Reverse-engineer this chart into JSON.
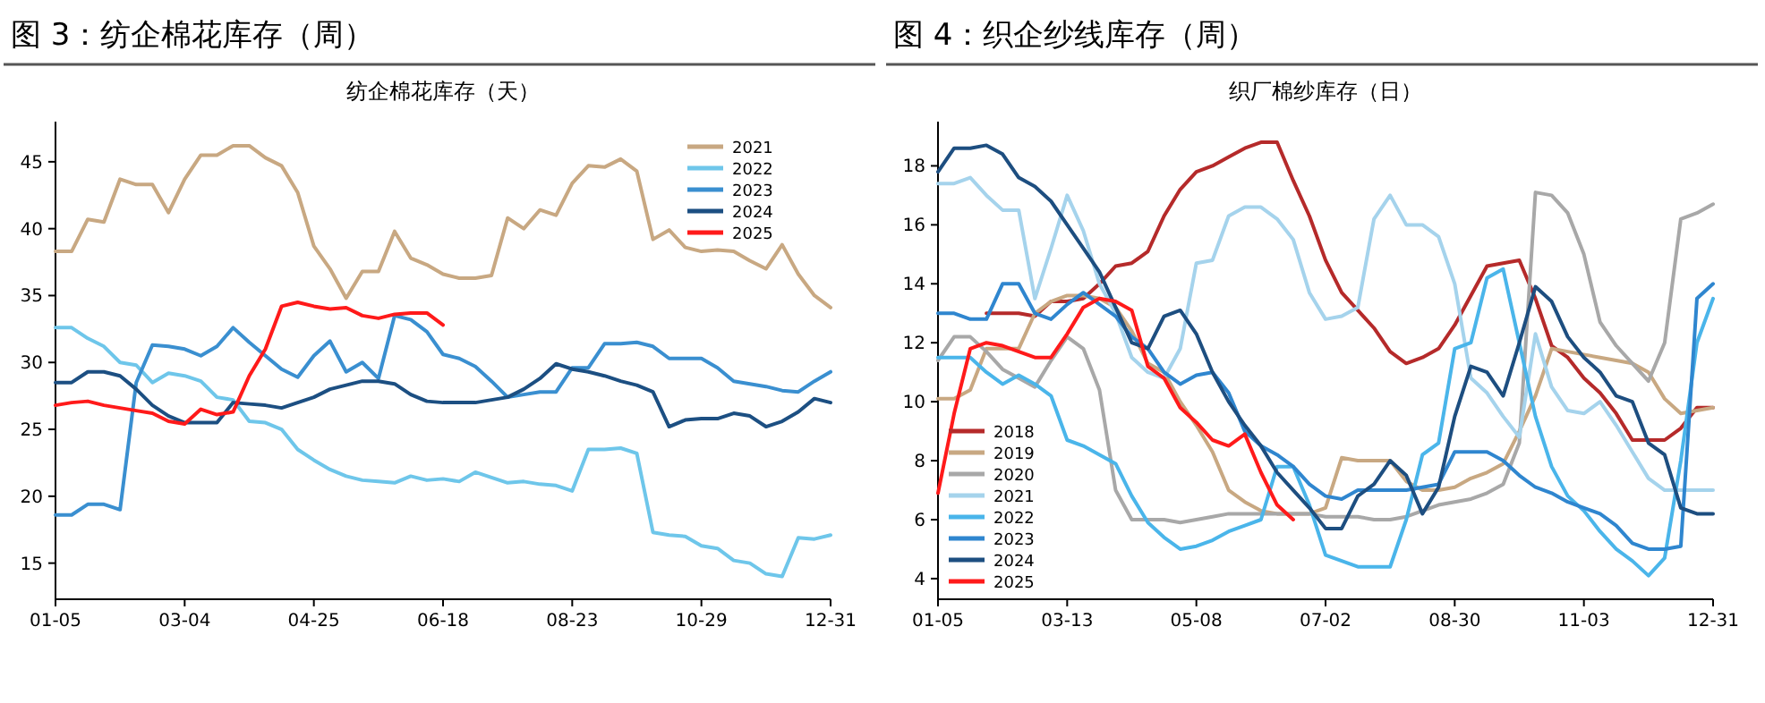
{
  "chart_data": [
    {
      "type": "line",
      "title": "图 3：纺企棉花库存（周）",
      "subtitle": "纺企棉花库存（天）",
      "categories": [
        "01-05",
        null,
        null,
        null,
        null,
        null,
        null,
        null,
        "03-04",
        null,
        null,
        null,
        null,
        null,
        null,
        null,
        "04-25",
        null,
        null,
        null,
        null,
        null,
        null,
        null,
        "06-18",
        null,
        null,
        null,
        null,
        null,
        null,
        null,
        "08-23",
        null,
        null,
        null,
        null,
        null,
        null,
        null,
        "10-29",
        null,
        null,
        null,
        null,
        null,
        null,
        null,
        "12-31"
      ],
      "ylim": [
        12.3,
        48
      ],
      "yticks": [
        15,
        20,
        25,
        30,
        35,
        40,
        45
      ],
      "legend": "top right",
      "series": [
        {
          "name": "2021",
          "color": "#c8a882",
          "values": [
            38.3,
            38.3,
            40.7,
            40.5,
            43.7,
            43.3,
            43.3,
            41.2,
            43.7,
            45.5,
            45.5,
            46.2,
            46.2,
            45.3,
            44.7,
            42.7,
            38.7,
            37.0,
            34.8,
            36.8,
            36.8,
            39.8,
            37.8,
            37.3,
            36.6,
            36.3,
            36.3,
            36.5,
            40.8,
            40.0,
            41.4,
            41.0,
            43.4,
            44.7,
            44.6,
            45.2,
            44.3,
            39.2,
            39.9,
            38.6,
            38.3,
            38.4,
            38.3,
            37.6,
            37.0,
            38.8,
            36.6,
            35.0,
            34.1
          ]
        },
        {
          "name": "2022",
          "color": "#6ec6ea",
          "values": [
            32.6,
            32.6,
            31.8,
            31.2,
            30.0,
            29.8,
            28.5,
            29.2,
            29.0,
            28.6,
            27.4,
            27.2,
            25.6,
            25.5,
            25.0,
            23.5,
            22.7,
            22.0,
            21.5,
            21.2,
            21.1,
            21.0,
            21.5,
            21.2,
            21.3,
            21.1,
            21.8,
            21.4,
            21.0,
            21.1,
            20.9,
            20.8,
            20.4,
            23.5,
            23.5,
            23.6,
            23.2,
            17.3,
            17.1,
            17.0,
            16.3,
            16.1,
            15.2,
            15.0,
            14.2,
            14.0,
            16.9,
            16.8,
            17.1
          ]
        },
        {
          "name": "2023",
          "color": "#3a8fd0",
          "values": [
            18.6,
            18.6,
            19.4,
            19.4,
            19.0,
            28.5,
            31.3,
            31.2,
            31.0,
            30.5,
            31.2,
            32.6,
            31.5,
            30.5,
            29.5,
            28.9,
            30.5,
            31.6,
            29.3,
            30.0,
            28.8,
            33.5,
            33.2,
            32.3,
            30.6,
            30.3,
            29.7,
            28.6,
            27.4,
            27.6,
            27.8,
            27.8,
            29.6,
            29.6,
            31.4,
            31.4,
            31.5,
            31.2,
            30.3,
            30.3,
            30.3,
            29.6,
            28.6,
            28.4,
            28.2,
            27.9,
            27.8,
            28.6,
            29.3
          ]
        },
        {
          "name": "2024",
          "color": "#1c4f82",
          "values": [
            28.5,
            28.5,
            29.3,
            29.3,
            29.0,
            28.0,
            26.8,
            26.0,
            25.5,
            25.5,
            25.5,
            27.0,
            26.9,
            26.8,
            26.6,
            27.0,
            27.4,
            28.0,
            28.3,
            28.6,
            28.6,
            28.4,
            27.6,
            27.1,
            27.0,
            27.0,
            27.0,
            27.2,
            27.4,
            28.0,
            28.8,
            29.9,
            29.5,
            29.3,
            29.0,
            28.6,
            28.3,
            27.8,
            25.2,
            25.7,
            25.8,
            25.8,
            26.2,
            26.0,
            25.2,
            25.6,
            26.3,
            27.3,
            27.0
          ]
        },
        {
          "name": "2025",
          "color": "#ff1a1a",
          "values": [
            26.8,
            27.0,
            27.1,
            26.8,
            26.6,
            26.4,
            26.2,
            25.6,
            25.4,
            26.5,
            26.1,
            26.3,
            29.0,
            31.0,
            34.2,
            34.5,
            34.2,
            34.0,
            34.1,
            33.5,
            33.3,
            33.6,
            33.7,
            33.7,
            32.8,
            null,
            null,
            null,
            null,
            null,
            null,
            null,
            null,
            null,
            null,
            null,
            null,
            null,
            null,
            null,
            null,
            null,
            null,
            null,
            null,
            null,
            null,
            null,
            null
          ]
        }
      ]
    },
    {
      "type": "line",
      "title": "图 4：织企纱线库存（周）",
      "subtitle": "织厂棉纱库存（日）",
      "categories": [
        "01-05",
        null,
        null,
        null,
        null,
        null,
        null,
        null,
        "03-13",
        null,
        null,
        null,
        null,
        null,
        null,
        null,
        "05-08",
        null,
        null,
        null,
        null,
        null,
        null,
        null,
        "07-02",
        null,
        null,
        null,
        null,
        null,
        null,
        null,
        "08-30",
        null,
        null,
        null,
        null,
        null,
        null,
        null,
        "11-03",
        null,
        null,
        null,
        null,
        null,
        null,
        null,
        "12-31"
      ],
      "ylim": [
        3.3,
        19.5
      ],
      "yticks": [
        4,
        6,
        8,
        10,
        12,
        14,
        16,
        18
      ],
      "legend": "bottom left",
      "series": [
        {
          "name": "2018",
          "color": "#b52a2a",
          "values": [
            null,
            null,
            null,
            13.0,
            13.0,
            13.0,
            12.9,
            13.4,
            13.4,
            13.5,
            14.0,
            14.6,
            14.7,
            15.1,
            16.3,
            17.2,
            17.8,
            18.0,
            18.3,
            18.6,
            18.8,
            18.8,
            17.5,
            16.3,
            14.8,
            13.7,
            13.1,
            12.5,
            11.7,
            11.3,
            11.5,
            11.8,
            12.6,
            13.6,
            14.6,
            14.7,
            14.8,
            13.5,
            11.9,
            11.5,
            10.8,
            10.3,
            9.6,
            8.7,
            8.7,
            8.7,
            9.1,
            9.8,
            9.8
          ]
        },
        {
          "name": "2019",
          "color": "#c8a882",
          "values": [
            10.1,
            10.1,
            10.4,
            11.8,
            11.8,
            11.8,
            13.0,
            13.4,
            13.6,
            13.6,
            13.5,
            13.2,
            12.4,
            11.3,
            11.0,
            10.0,
            9.2,
            8.3,
            7.0,
            6.6,
            6.3,
            6.2,
            6.2,
            6.2,
            6.4,
            8.1,
            8.0,
            8.0,
            8.0,
            7.3,
            7.0,
            7.0,
            7.1,
            7.4,
            7.6,
            7.9,
            9.0,
            10.2,
            11.8,
            11.7,
            11.6,
            11.5,
            11.4,
            11.3,
            11.0,
            10.1,
            9.6,
            9.7,
            9.8
          ]
        },
        {
          "name": "2020",
          "color": "#a8a8a8",
          "values": [
            11.4,
            12.2,
            12.2,
            11.7,
            11.1,
            10.8,
            10.5,
            11.4,
            12.2,
            11.8,
            10.4,
            7.0,
            6.0,
            6.0,
            6.0,
            5.9,
            6.0,
            6.1,
            6.2,
            6.2,
            6.2,
            6.2,
            6.2,
            6.2,
            6.1,
            6.1,
            6.1,
            6.0,
            6.0,
            6.1,
            6.3,
            6.5,
            6.6,
            6.7,
            6.9,
            7.2,
            8.6,
            17.1,
            17.0,
            16.4,
            15.0,
            12.7,
            11.9,
            11.3,
            10.7,
            12.0,
            16.2,
            16.4,
            16.7
          ]
        },
        {
          "name": "2021",
          "color": "#a5d3ec",
          "values": [
            17.4,
            17.4,
            17.6,
            17.0,
            16.5,
            16.5,
            13.5,
            15.2,
            17.0,
            15.8,
            14.0,
            13.0,
            11.5,
            11.0,
            10.8,
            11.8,
            14.7,
            14.8,
            16.3,
            16.6,
            16.6,
            16.2,
            15.5,
            13.7,
            12.8,
            12.9,
            13.2,
            16.2,
            17.0,
            16.0,
            16.0,
            15.6,
            14.0,
            10.8,
            10.3,
            9.5,
            8.8,
            12.3,
            10.5,
            9.7,
            9.6,
            10.0,
            9.2,
            8.3,
            7.4,
            7.0,
            7.0,
            7.0,
            7.0
          ]
        },
        {
          "name": "2022",
          "color": "#4ab5ea",
          "values": [
            11.5,
            11.5,
            11.5,
            11.0,
            10.6,
            10.9,
            10.6,
            10.2,
            8.7,
            8.5,
            8.2,
            7.9,
            6.8,
            5.9,
            5.4,
            5.0,
            5.1,
            5.3,
            5.6,
            5.8,
            6.0,
            7.8,
            7.8,
            6.5,
            4.8,
            4.6,
            4.4,
            4.4,
            4.4,
            6.0,
            8.2,
            8.6,
            11.8,
            12.0,
            14.2,
            14.5,
            12.0,
            9.5,
            7.8,
            6.8,
            6.3,
            5.6,
            5.0,
            4.6,
            4.1,
            4.7,
            8.0,
            12.0,
            13.5
          ]
        },
        {
          "name": "2023",
          "color": "#2f86cf",
          "values": [
            13.0,
            13.0,
            12.8,
            12.8,
            14.0,
            14.0,
            13.0,
            12.8,
            13.3,
            13.7,
            13.3,
            12.9,
            12.2,
            11.8,
            11.0,
            10.6,
            10.9,
            11.0,
            10.3,
            9.0,
            8.5,
            8.2,
            7.8,
            7.2,
            6.8,
            6.7,
            7.0,
            7.0,
            7.0,
            7.0,
            7.1,
            7.2,
            8.3,
            8.3,
            8.3,
            8.0,
            7.5,
            7.1,
            6.9,
            6.6,
            6.4,
            6.2,
            5.8,
            5.2,
            5.0,
            5.0,
            5.1,
            13.5,
            14.0
          ]
        },
        {
          "name": "2024",
          "color": "#1d4e80",
          "values": [
            17.8,
            18.6,
            18.6,
            18.7,
            18.4,
            17.6,
            17.3,
            16.8,
            16.0,
            15.2,
            14.4,
            13.2,
            12.0,
            11.8,
            12.9,
            13.1,
            12.3,
            11.0,
            10.0,
            9.2,
            8.5,
            7.6,
            7.0,
            6.4,
            5.7,
            5.7,
            6.8,
            7.2,
            8.0,
            7.5,
            6.2,
            7.1,
            9.5,
            11.2,
            11.0,
            10.2,
            12.0,
            13.9,
            13.4,
            12.2,
            11.5,
            11.0,
            10.2,
            10.0,
            8.6,
            8.2,
            6.4,
            6.2,
            6.2
          ]
        },
        {
          "name": "2025",
          "color": "#ff1a1a",
          "values": [
            6.9,
            9.6,
            11.8,
            12.0,
            11.9,
            11.7,
            11.5,
            11.5,
            12.3,
            13.2,
            13.5,
            13.4,
            13.1,
            11.2,
            10.8,
            9.8,
            9.3,
            8.7,
            8.5,
            8.9,
            7.6,
            6.5,
            6.0,
            null,
            null,
            null,
            null,
            null,
            null,
            null,
            null,
            null,
            null,
            null,
            null,
            null,
            null,
            null,
            null,
            null,
            null,
            null,
            null,
            null,
            null,
            null,
            null,
            null,
            null
          ]
        }
      ]
    }
  ]
}
